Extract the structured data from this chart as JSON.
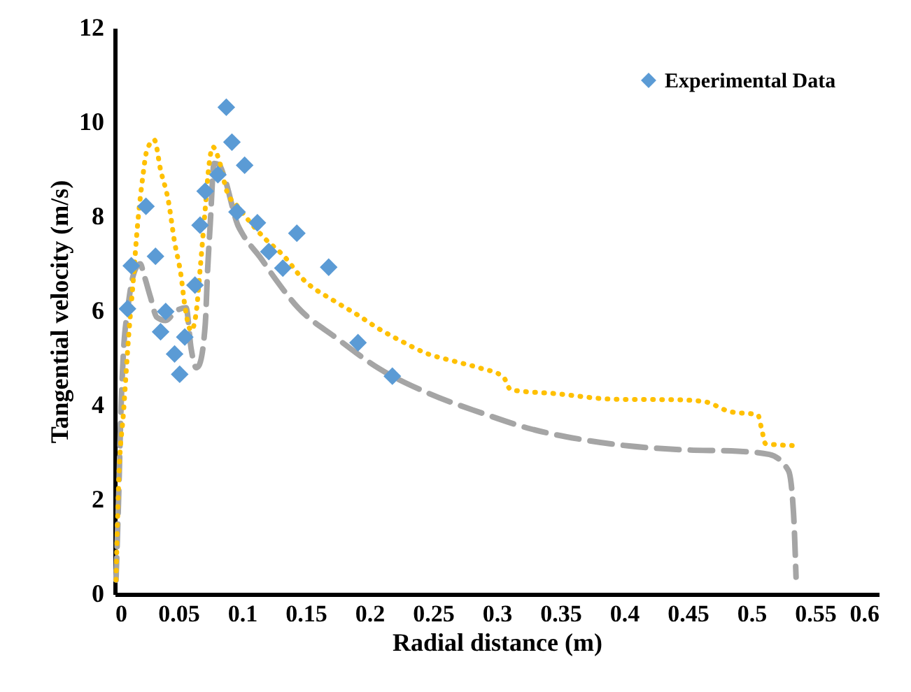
{
  "chart_data": {
    "type": "scatter",
    "xlabel": "Radial distance (m)",
    "ylabel": "Tangential velocity (m/s)",
    "xlim": [
      0,
      0.6
    ],
    "xticks": [
      0,
      0.05,
      0.1,
      0.15,
      0.2,
      0.25,
      0.3,
      0.35,
      0.4,
      0.45,
      0.5,
      0.55,
      0.6
    ],
    "ylim": [
      0,
      12
    ],
    "yticks": [
      0,
      2,
      4,
      6,
      8,
      10,
      12
    ],
    "grid": false,
    "legend": "top right",
    "series": [
      {
        "name": "Experimental Data",
        "marker": "diamond",
        "color": "#5b9bd5",
        "x": [
          0.01,
          0.013,
          0.0245,
          0.032,
          0.036,
          0.04,
          0.047,
          0.051,
          0.055,
          0.063,
          0.067,
          0.071,
          0.081,
          0.0876,
          0.092,
          0.096,
          0.102,
          0.112,
          0.121,
          0.132,
          0.143,
          0.168,
          0.191,
          0.218
        ],
        "values": [
          6.05,
          6.96,
          8.22,
          7.16,
          5.56,
          5.99,
          5.09,
          4.66,
          5.45,
          6.55,
          7.82,
          8.54,
          8.89,
          10.32,
          9.58,
          8.1,
          9.09,
          7.87,
          7.26,
          6.91,
          7.65,
          6.93,
          5.33,
          4.62
        ]
      },
      {
        "type": "line",
        "line_style": "dashed",
        "color": "#a5a5a5",
        "x": [
          0.001,
          0.003,
          0.005,
          0.007,
          0.01,
          0.015,
          0.02,
          0.023,
          0.028,
          0.033,
          0.04,
          0.048,
          0.056,
          0.06,
          0.064,
          0.066,
          0.071,
          0.073,
          0.075,
          0.078,
          0.082,
          0.086,
          0.097,
          0.1,
          0.115,
          0.124,
          0.144,
          0.174,
          0.207,
          0.247,
          0.287,
          0.327,
          0.364,
          0.404,
          0.446,
          0.489,
          0.514,
          0.529,
          0.533,
          0.535
        ],
        "values": [
          0.3,
          2.0,
          4.0,
          5.2,
          6.0,
          6.8,
          7.0,
          6.76,
          6.3,
          5.87,
          5.8,
          6.0,
          6.07,
          5.2,
          4.8,
          4.84,
          5.69,
          6.91,
          7.85,
          9.13,
          9.1,
          8.84,
          7.8,
          7.65,
          7.11,
          6.76,
          6.07,
          5.43,
          4.79,
          4.25,
          3.85,
          3.5,
          3.29,
          3.14,
          3.06,
          3.03,
          2.96,
          2.62,
          1.73,
          0.36
        ]
      },
      {
        "type": "line",
        "line_style": "dotted",
        "color": "#ffc000",
        "x": [
          0.001,
          0.003,
          0.007,
          0.011,
          0.014,
          0.018,
          0.022,
          0.025,
          0.031,
          0.036,
          0.042,
          0.047,
          0.052,
          0.055,
          0.06,
          0.064,
          0.067,
          0.071,
          0.074,
          0.077,
          0.082,
          0.088,
          0.097,
          0.117,
          0.133,
          0.148,
          0.172,
          0.19,
          0.207,
          0.226,
          0.245,
          0.266,
          0.287,
          0.305,
          0.311,
          0.346,
          0.393,
          0.441,
          0.463,
          0.483,
          0.505,
          0.508,
          0.511,
          0.532
        ],
        "values": [
          0.3,
          2.3,
          3.9,
          5.5,
          6.47,
          7.85,
          8.84,
          9.38,
          9.63,
          8.99,
          8.35,
          7.46,
          6.76,
          6.12,
          5.58,
          5.98,
          6.87,
          8.15,
          9.09,
          9.48,
          9.19,
          8.54,
          8.2,
          7.56,
          7.16,
          6.67,
          6.22,
          5.93,
          5.63,
          5.35,
          5.1,
          4.94,
          4.79,
          4.61,
          4.33,
          4.25,
          4.13,
          4.12,
          4.08,
          3.87,
          3.8,
          3.5,
          3.19,
          3.15
        ]
      }
    ]
  }
}
